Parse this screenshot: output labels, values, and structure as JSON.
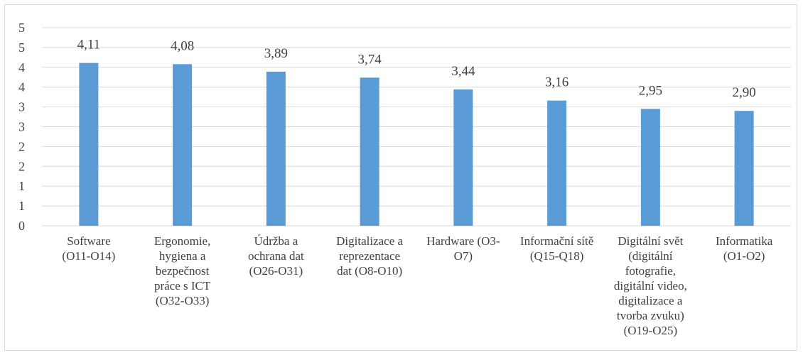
{
  "chart_data": {
    "type": "bar",
    "title": "",
    "xlabel": "",
    "ylabel": "",
    "categories": [
      [
        "Software",
        "(O11-O14)"
      ],
      [
        "Ergonomie,",
        "hygiena a",
        "bezpečnost",
        "práce s ICT",
        "(O32-O33)"
      ],
      [
        "Údržba a",
        "ochrana dat",
        "(O26-O31)"
      ],
      [
        "Digitalizace a",
        "reprezentace",
        "dat (O8-O10)"
      ],
      [
        "Hardware (O3-",
        "O7)"
      ],
      [
        "Informační sítě",
        "(Q15-Q18)"
      ],
      [
        "Digitální svět",
        "(digitální",
        "fotografie,",
        "digitální video,",
        "digitalizace a",
        "tvorba zvuku)",
        "(O19-O25)"
      ],
      [
        "Informatika",
        "(O1-O2)"
      ]
    ],
    "values": [
      4.11,
      4.08,
      3.89,
      3.74,
      3.44,
      3.16,
      2.95,
      2.9
    ],
    "data_labels": [
      "4,11",
      "4,08",
      "3,89",
      "3,74",
      "3,44",
      "3,16",
      "2,95",
      "2,90"
    ],
    "ylim": [
      0,
      5
    ],
    "y_ticks": [
      0,
      0.5,
      1,
      1.5,
      2,
      2.5,
      3,
      3.5,
      4,
      4.5,
      5
    ],
    "y_tick_labels": [
      "0",
      "1",
      "1",
      "2",
      "2",
      "3",
      "3",
      "4",
      "4",
      "5",
      "5"
    ],
    "grid": true,
    "legend": "none",
    "colors": {
      "bar": "#5b9bd5",
      "grid": "#d9d9d9",
      "text": "#404040"
    }
  }
}
